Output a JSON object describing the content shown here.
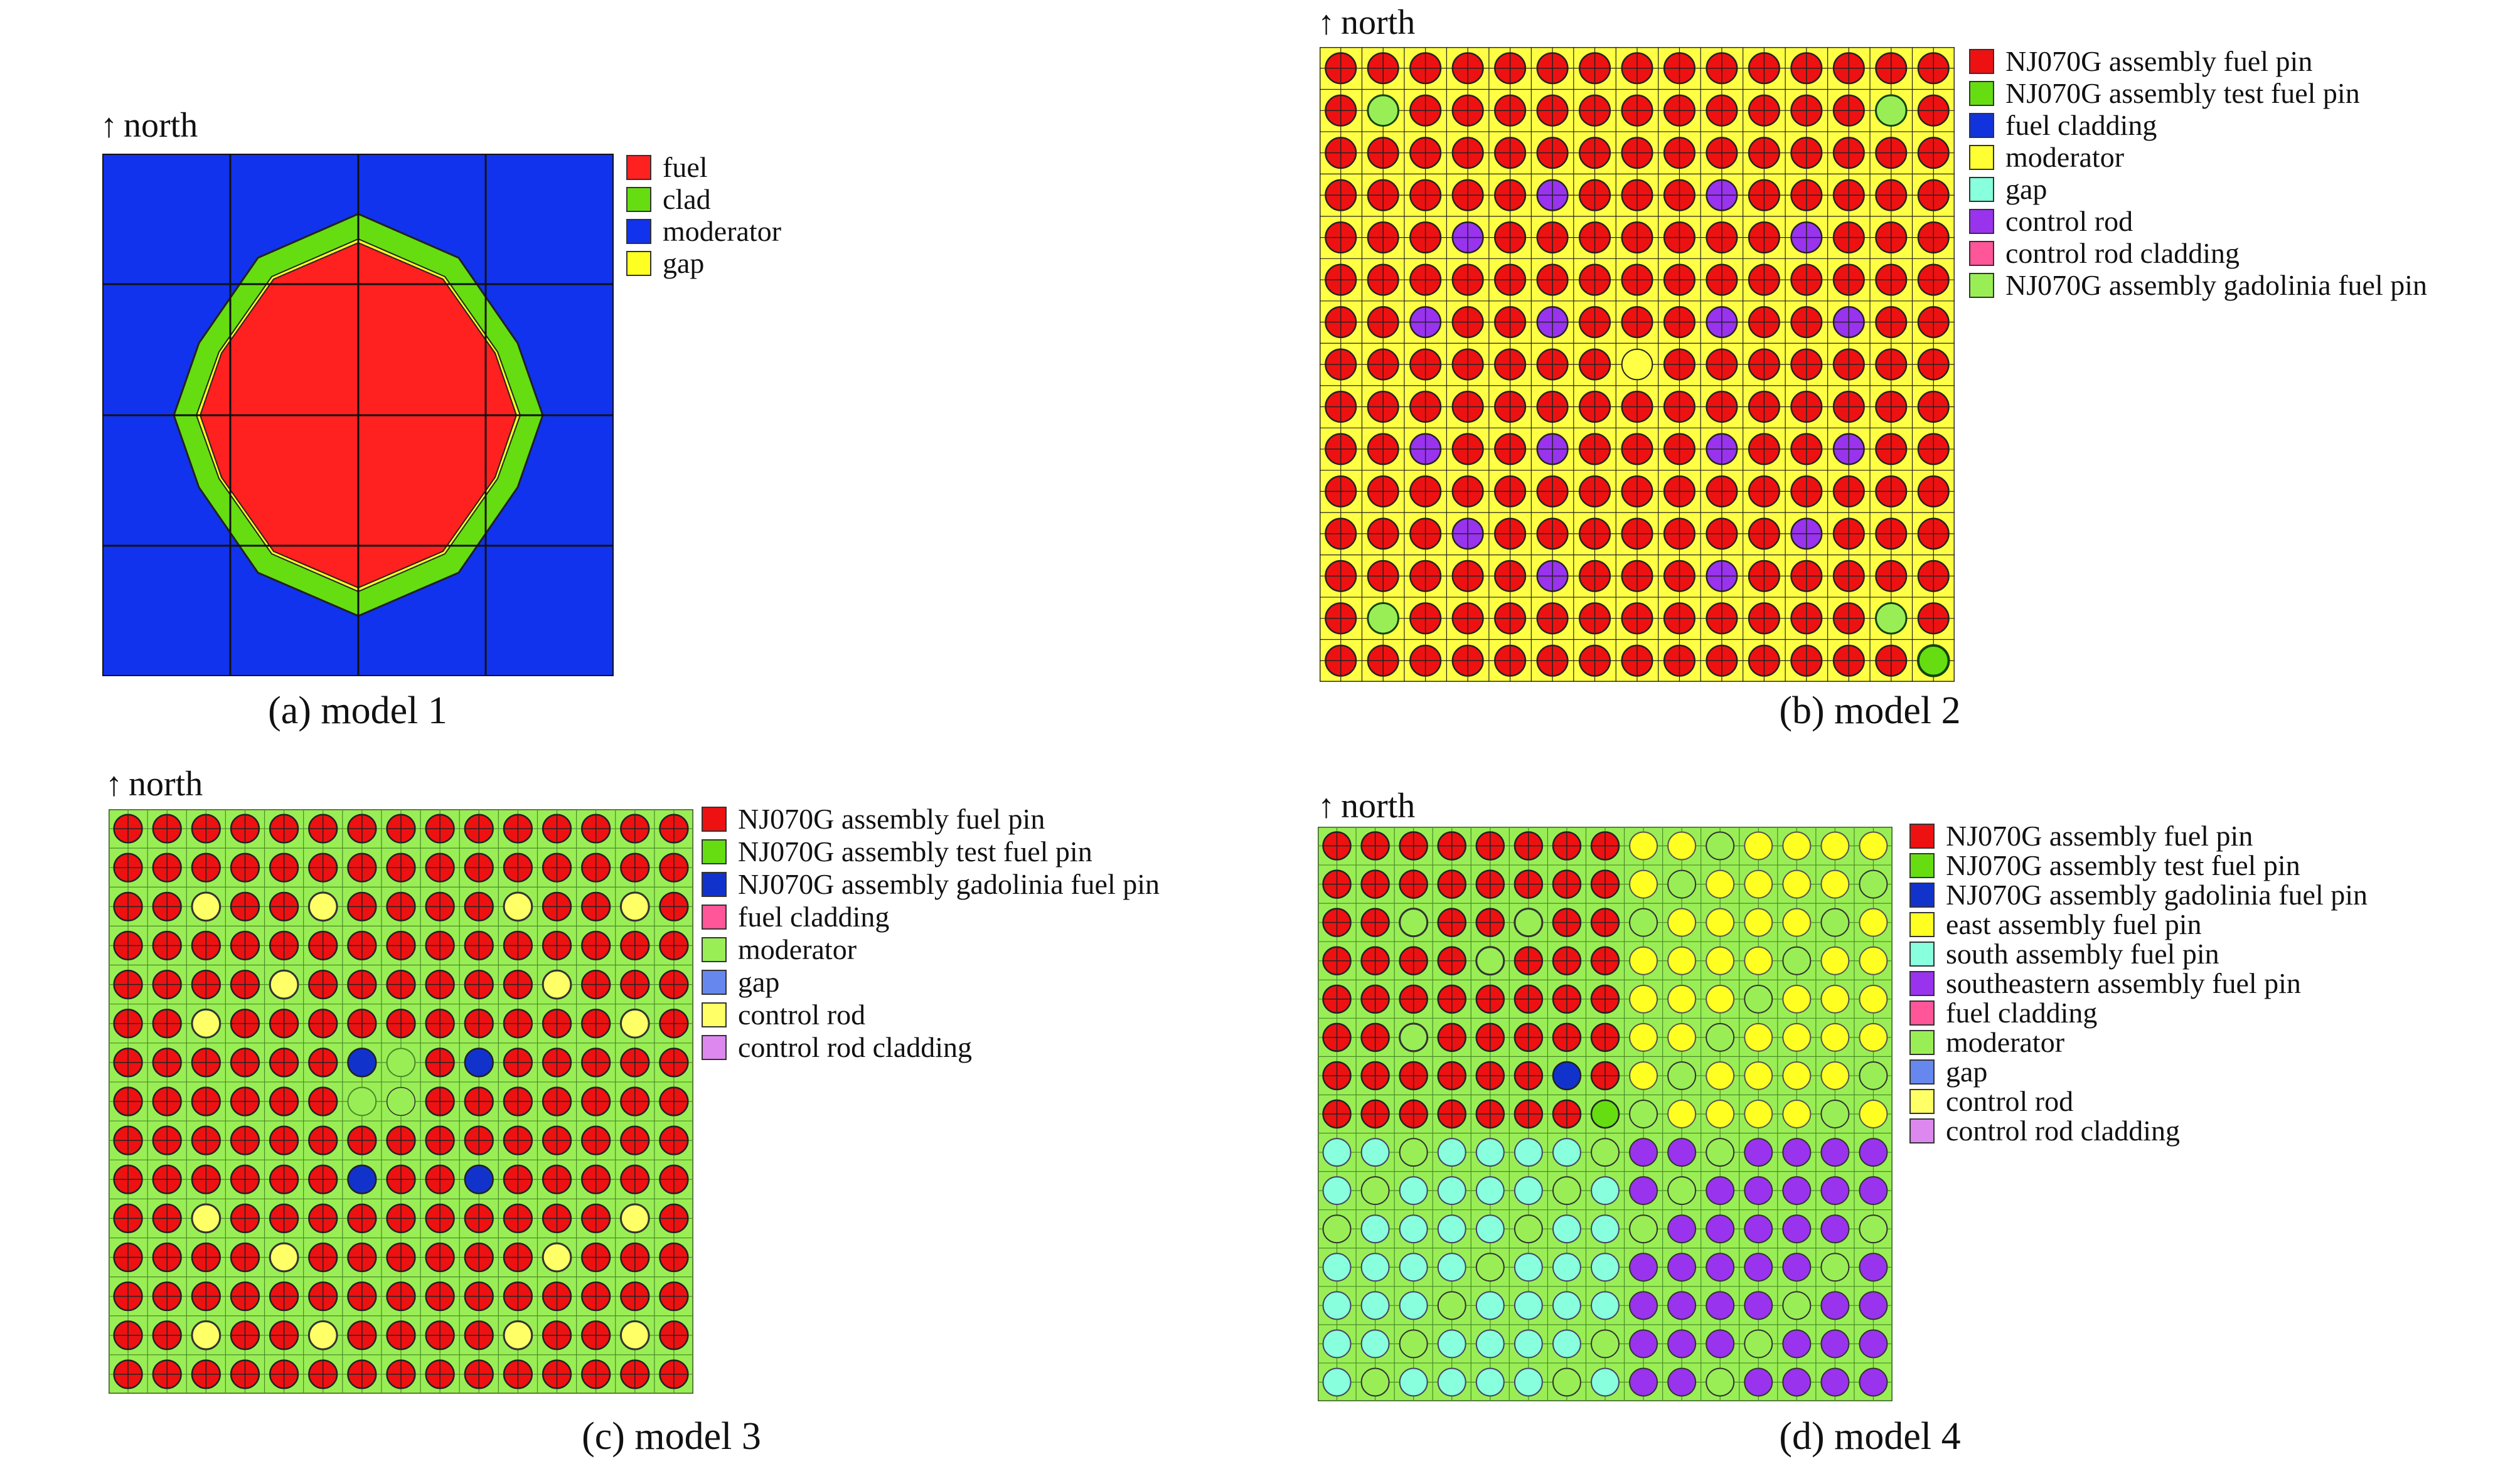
{
  "figure": {
    "north_label": "north",
    "panels": [
      {
        "id": "a",
        "caption": "(a) model 1",
        "legend": [
          {
            "label": "fuel",
            "color": "#ff2020"
          },
          {
            "label": "clad",
            "color": "#66dd11"
          },
          {
            "label": "moderator",
            "color": "#1133ee"
          },
          {
            "label": "gap",
            "color": "#ffff22"
          }
        ]
      },
      {
        "id": "b",
        "caption": "(b) model 2",
        "legend": [
          {
            "label": "NJ070G assembly fuel pin",
            "color": "#ee1111"
          },
          {
            "label": "NJ070G assembly test fuel pin",
            "color": "#66dd11"
          },
          {
            "label": "fuel cladding",
            "color": "#1133dd"
          },
          {
            "label": "moderator",
            "color": "#ffff33"
          },
          {
            "label": "gap",
            "color": "#88ffdd"
          },
          {
            "label": "control rod",
            "color": "#9933ee"
          },
          {
            "label": "control rod cladding",
            "color": "#ff5599"
          },
          {
            "label": "NJ070G assembly gadolinia fuel pin",
            "color": "#99ee55"
          }
        ]
      },
      {
        "id": "c",
        "caption": "(c) model 3",
        "legend": [
          {
            "label": "NJ070G assembly fuel pin",
            "color": "#ee1111"
          },
          {
            "label": "NJ070G assembly test fuel pin",
            "color": "#66dd11"
          },
          {
            "label": "NJ070G assembly gadolinia fuel pin",
            "color": "#1133cc"
          },
          {
            "label": "fuel cladding",
            "color": "#ff5599"
          },
          {
            "label": "moderator",
            "color": "#99ee55"
          },
          {
            "label": "gap",
            "color": "#6688ee"
          },
          {
            "label": "control rod",
            "color": "#ffff66"
          },
          {
            "label": "control rod cladding",
            "color": "#dd88ee"
          }
        ]
      },
      {
        "id": "d",
        "caption": "(d) model 4",
        "legend": [
          {
            "label": "NJ070G assembly fuel pin",
            "color": "#ee1111"
          },
          {
            "label": "NJ070G assembly test fuel pin",
            "color": "#66dd11"
          },
          {
            "label": "NJ070G assembly gadolinia fuel pin",
            "color": "#1133cc"
          },
          {
            "label": "east assembly fuel pin",
            "color": "#ffff22"
          },
          {
            "label": "south assembly fuel pin",
            "color": "#88ffdd"
          },
          {
            "label": "southeastern assembly fuel pin",
            "color": "#9933ee"
          },
          {
            "label": "fuel cladding",
            "color": "#ff5599"
          },
          {
            "label": "moderator",
            "color": "#99ee55"
          },
          {
            "label": "gap",
            "color": "#6688ee"
          },
          {
            "label": "control rod",
            "color": "#ffff66"
          },
          {
            "label": "control rod cladding",
            "color": "#dd88ee"
          }
        ]
      }
    ]
  }
}
